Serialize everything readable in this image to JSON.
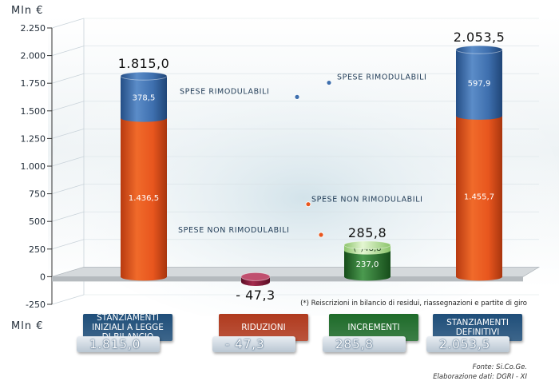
{
  "unit_top": "Mln €",
  "unit_bottom": "Mln €",
  "footnote": "(*) Reiscrizioni in bilancio di residui, riassegnazioni e partite di giro",
  "source": "Fonte: Si.Co.Ge.",
  "elaboration": "Elaborazione dati: DGRI - XI",
  "colors": {
    "orange": "#e8561e",
    "blue": "#3e6fae",
    "red": "#8c1a3a",
    "green": "#2e7d32",
    "lightgreen": "#bfe3a0"
  },
  "chart_data": {
    "type": "bar",
    "ylim": [
      -250,
      2250
    ],
    "yticks": [
      -250,
      0,
      250,
      500,
      750,
      1000,
      1250,
      1500,
      1750,
      2000,
      2250
    ],
    "ytick_labels": [
      "-250",
      "0",
      "250",
      "500",
      "750",
      "1.000",
      "1.250",
      "1.500",
      "1.750",
      "2.000",
      "2.250"
    ],
    "bars": [
      {
        "name": "stanziamenti-iniziali",
        "total_label": "1.815,0",
        "segments": [
          {
            "value": 1436.5,
            "label": "1.436,5",
            "color": "orange"
          },
          {
            "value": 378.5,
            "label": "378,5",
            "color": "blue"
          }
        ]
      },
      {
        "name": "riduzioni",
        "total_label": "- 47,3",
        "segments": [
          {
            "value": -47.3,
            "label": "",
            "color": "red"
          }
        ]
      },
      {
        "name": "incrementi",
        "total_label": "285,8",
        "segments": [
          {
            "value": 237.0,
            "label": "237,0",
            "color": "green"
          },
          {
            "value": 48.8,
            "label": "(*)48,8",
            "color": "lightgreen"
          }
        ]
      },
      {
        "name": "stanziamenti-definitivi",
        "total_label": "2.053,5",
        "segments": [
          {
            "value": 1455.7,
            "label": "1.455,7",
            "color": "orange"
          },
          {
            "value": 597.9,
            "label": "597,9",
            "color": "blue"
          }
        ]
      }
    ],
    "annotations": [
      {
        "text": "SPESE RIMODULABILI",
        "bar": 0,
        "segment": 1,
        "side": "right"
      },
      {
        "text": "SPESE RIMODULABILI",
        "bar": 3,
        "segment": 1,
        "side": "left"
      },
      {
        "text": "SPESE NON RIMODULABILI",
        "bar": 0,
        "segment": 0,
        "side": "right"
      },
      {
        "text": "SPESE NON RIMODULABILI",
        "bar": 3,
        "segment": 0,
        "side": "left"
      }
    ]
  },
  "cards": [
    {
      "title": "STANZIAMENTI INIZIALI A LEGGE DI BILANCIO",
      "value": "1.815,0",
      "color": "#1f4e79"
    },
    {
      "title": "RIDUZIONI",
      "value": "- 47,3",
      "color": "#b03a1e"
    },
    {
      "title": "INCREMENTI",
      "value": "285,8",
      "color": "#1e6b2a"
    },
    {
      "title": "STANZIAMENTI DEFINITIVI",
      "value": "2.053,5",
      "color": "#1f4e79"
    }
  ]
}
